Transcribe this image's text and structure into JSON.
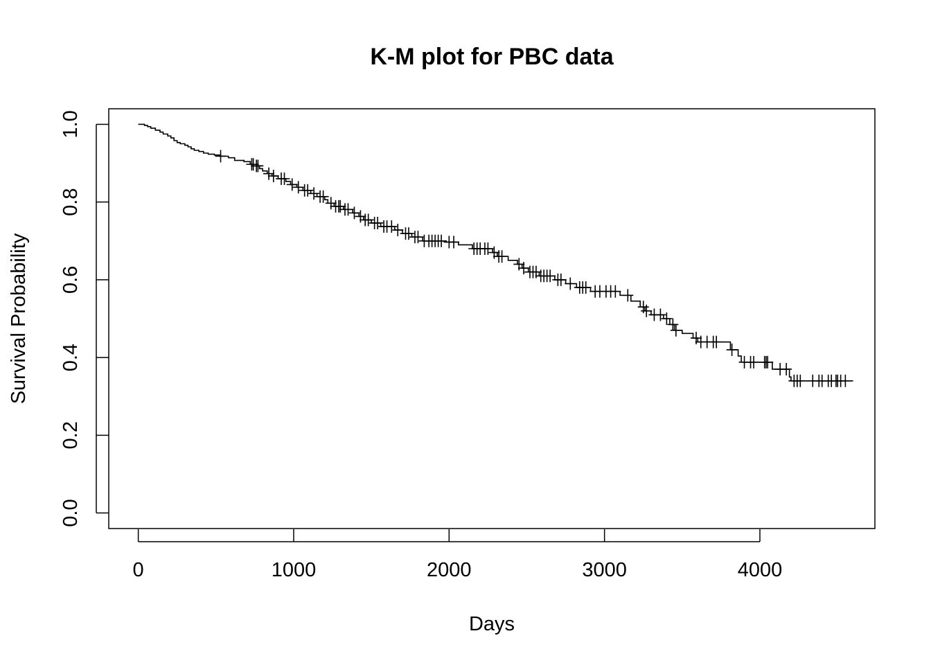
{
  "chart_data": {
    "type": "line",
    "title": "K-M plot for PBC data",
    "xlabel": "Days",
    "ylabel": "Survival Probability",
    "xlim": [
      -190,
      4740
    ],
    "ylim": [
      -0.04,
      1.04
    ],
    "xticks": [
      0,
      1000,
      2000,
      3000,
      4000
    ],
    "xtick_labels": [
      "0",
      "1000",
      "2000",
      "3000",
      "4000"
    ],
    "yticks": [
      0.0,
      0.2,
      0.4,
      0.6,
      0.8,
      1.0
    ],
    "ytick_labels": [
      "0.0",
      "0.2",
      "0.4",
      "0.6",
      "0.8",
      "1.0"
    ],
    "grid": false,
    "series": [
      {
        "step": "post",
        "color": "#000000",
        "points": [
          [
            0,
            1.0
          ],
          [
            40,
            0.997
          ],
          [
            60,
            0.994
          ],
          [
            80,
            0.99
          ],
          [
            110,
            0.985
          ],
          [
            140,
            0.98
          ],
          [
            160,
            0.975
          ],
          [
            190,
            0.97
          ],
          [
            210,
            0.965
          ],
          [
            230,
            0.958
          ],
          [
            250,
            0.953
          ],
          [
            270,
            0.95
          ],
          [
            300,
            0.946
          ],
          [
            320,
            0.942
          ],
          [
            340,
            0.937
          ],
          [
            360,
            0.933
          ],
          [
            390,
            0.93
          ],
          [
            420,
            0.926
          ],
          [
            450,
            0.923
          ],
          [
            490,
            0.921
          ],
          [
            530,
            0.918
          ],
          [
            580,
            0.914
          ],
          [
            620,
            0.907
          ],
          [
            680,
            0.904
          ],
          [
            720,
            0.897
          ],
          [
            740,
            0.893
          ],
          [
            780,
            0.886
          ],
          [
            800,
            0.88
          ],
          [
            830,
            0.873
          ],
          [
            860,
            0.867
          ],
          [
            900,
            0.86
          ],
          [
            950,
            0.853
          ],
          [
            980,
            0.845
          ],
          [
            1020,
            0.838
          ],
          [
            1060,
            0.83
          ],
          [
            1110,
            0.822
          ],
          [
            1150,
            0.814
          ],
          [
            1200,
            0.806
          ],
          [
            1220,
            0.797
          ],
          [
            1260,
            0.789
          ],
          [
            1320,
            0.781
          ],
          [
            1380,
            0.772
          ],
          [
            1420,
            0.763
          ],
          [
            1450,
            0.754
          ],
          [
            1500,
            0.746
          ],
          [
            1560,
            0.737
          ],
          [
            1650,
            0.728
          ],
          [
            1700,
            0.719
          ],
          [
            1760,
            0.71
          ],
          [
            1830,
            0.7
          ],
          [
            1980,
            0.697
          ],
          [
            2060,
            0.69
          ],
          [
            2150,
            0.68
          ],
          [
            2280,
            0.67
          ],
          [
            2310,
            0.66
          ],
          [
            2380,
            0.65
          ],
          [
            2440,
            0.64
          ],
          [
            2470,
            0.63
          ],
          [
            2510,
            0.62
          ],
          [
            2580,
            0.61
          ],
          [
            2680,
            0.6
          ],
          [
            2750,
            0.59
          ],
          [
            2820,
            0.58
          ],
          [
            2910,
            0.57
          ],
          [
            3100,
            0.56
          ],
          [
            3170,
            0.545
          ],
          [
            3230,
            0.53
          ],
          [
            3260,
            0.52
          ],
          [
            3300,
            0.51
          ],
          [
            3380,
            0.5
          ],
          [
            3420,
            0.485
          ],
          [
            3450,
            0.47
          ],
          [
            3500,
            0.462
          ],
          [
            3570,
            0.45
          ],
          [
            3600,
            0.44
          ],
          [
            3810,
            0.42
          ],
          [
            3860,
            0.404
          ],
          [
            3880,
            0.388
          ],
          [
            4080,
            0.37
          ],
          [
            4190,
            0.35
          ],
          [
            4200,
            0.34
          ],
          [
            4600,
            0.34
          ]
        ],
        "censored": [
          [
            530,
            0.918
          ],
          [
            730,
            0.897
          ],
          [
            740,
            0.897
          ],
          [
            760,
            0.893
          ],
          [
            770,
            0.893
          ],
          [
            840,
            0.873
          ],
          [
            870,
            0.867
          ],
          [
            920,
            0.86
          ],
          [
            940,
            0.86
          ],
          [
            990,
            0.845
          ],
          [
            1030,
            0.838
          ],
          [
            1070,
            0.83
          ],
          [
            1090,
            0.83
          ],
          [
            1130,
            0.822
          ],
          [
            1170,
            0.814
          ],
          [
            1190,
            0.814
          ],
          [
            1240,
            0.797
          ],
          [
            1270,
            0.789
          ],
          [
            1290,
            0.789
          ],
          [
            1300,
            0.789
          ],
          [
            1330,
            0.781
          ],
          [
            1350,
            0.781
          ],
          [
            1390,
            0.772
          ],
          [
            1430,
            0.763
          ],
          [
            1460,
            0.754
          ],
          [
            1480,
            0.754
          ],
          [
            1520,
            0.746
          ],
          [
            1540,
            0.746
          ],
          [
            1580,
            0.737
          ],
          [
            1600,
            0.737
          ],
          [
            1630,
            0.737
          ],
          [
            1670,
            0.728
          ],
          [
            1720,
            0.719
          ],
          [
            1740,
            0.719
          ],
          [
            1780,
            0.71
          ],
          [
            1800,
            0.71
          ],
          [
            1840,
            0.7
          ],
          [
            1870,
            0.7
          ],
          [
            1890,
            0.7
          ],
          [
            1910,
            0.7
          ],
          [
            1930,
            0.7
          ],
          [
            1950,
            0.7
          ],
          [
            2000,
            0.697
          ],
          [
            2030,
            0.697
          ],
          [
            2160,
            0.68
          ],
          [
            2180,
            0.68
          ],
          [
            2200,
            0.68
          ],
          [
            2230,
            0.68
          ],
          [
            2250,
            0.68
          ],
          [
            2290,
            0.67
          ],
          [
            2320,
            0.66
          ],
          [
            2340,
            0.66
          ],
          [
            2450,
            0.64
          ],
          [
            2480,
            0.63
          ],
          [
            2520,
            0.62
          ],
          [
            2540,
            0.62
          ],
          [
            2560,
            0.62
          ],
          [
            2590,
            0.61
          ],
          [
            2610,
            0.61
          ],
          [
            2630,
            0.61
          ],
          [
            2650,
            0.61
          ],
          [
            2700,
            0.6
          ],
          [
            2720,
            0.6
          ],
          [
            2780,
            0.59
          ],
          [
            2840,
            0.58
          ],
          [
            2860,
            0.58
          ],
          [
            2880,
            0.58
          ],
          [
            2940,
            0.57
          ],
          [
            2970,
            0.57
          ],
          [
            3010,
            0.57
          ],
          [
            3040,
            0.57
          ],
          [
            3070,
            0.57
          ],
          [
            3150,
            0.56
          ],
          [
            3250,
            0.53
          ],
          [
            3270,
            0.52
          ],
          [
            3320,
            0.51
          ],
          [
            3360,
            0.51
          ],
          [
            3400,
            0.5
          ],
          [
            3440,
            0.485
          ],
          [
            3460,
            0.47
          ],
          [
            3590,
            0.45
          ],
          [
            3620,
            0.44
          ],
          [
            3660,
            0.44
          ],
          [
            3700,
            0.44
          ],
          [
            3720,
            0.44
          ],
          [
            3820,
            0.42
          ],
          [
            3900,
            0.388
          ],
          [
            3940,
            0.388
          ],
          [
            3960,
            0.388
          ],
          [
            4030,
            0.388
          ],
          [
            4040,
            0.388
          ],
          [
            4050,
            0.388
          ],
          [
            4130,
            0.37
          ],
          [
            4170,
            0.37
          ],
          [
            4220,
            0.34
          ],
          [
            4240,
            0.34
          ],
          [
            4260,
            0.34
          ],
          [
            4340,
            0.34
          ],
          [
            4380,
            0.34
          ],
          [
            4400,
            0.34
          ],
          [
            4440,
            0.34
          ],
          [
            4460,
            0.34
          ],
          [
            4490,
            0.34
          ],
          [
            4500,
            0.34
          ],
          [
            4520,
            0.34
          ],
          [
            4550,
            0.34
          ]
        ]
      }
    ]
  }
}
